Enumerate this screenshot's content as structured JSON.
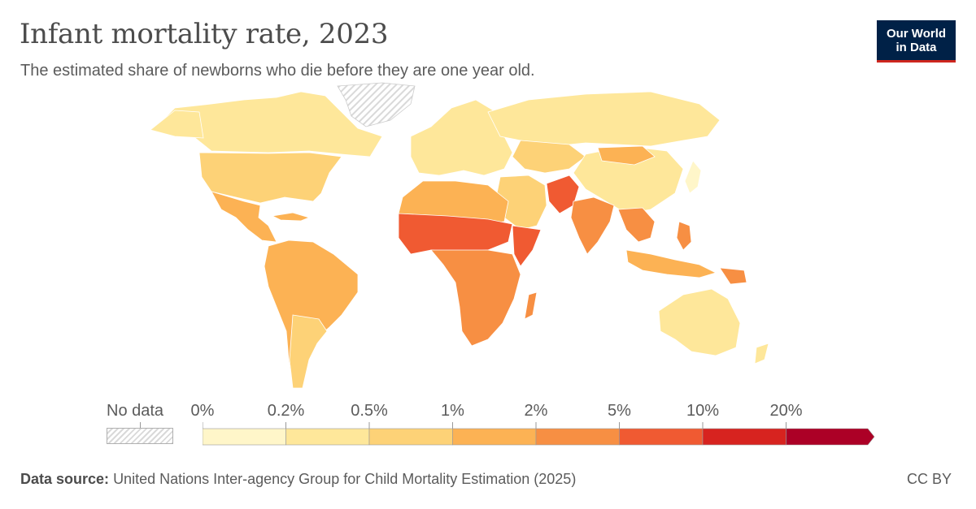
{
  "header": {
    "title": "Infant mortality rate, 2023",
    "subtitle": "The estimated share of newborns who die before they are one year old.",
    "logo_line1": "Our World",
    "logo_line2": "in Data"
  },
  "legend": {
    "no_data_label": "No data",
    "bins": [
      {
        "label": "0%",
        "color": "#fff6c9"
      },
      {
        "label": "0.2%",
        "color": "#fee79a"
      },
      {
        "label": "0.5%",
        "color": "#fdd277"
      },
      {
        "label": "1%",
        "color": "#fcb254"
      },
      {
        "label": "2%",
        "color": "#f78f43"
      },
      {
        "label": "5%",
        "color": "#f05a32"
      },
      {
        "label": "10%",
        "color": "#d7231f"
      },
      {
        "label": "20%",
        "color": "#ac0026"
      }
    ]
  },
  "colors": {
    "no_data_fill": "#e9e9e9",
    "border": "#ffffff",
    "title": "#4c4c4c"
  },
  "footer": {
    "source_label": "Data source:",
    "source_text": "United Nations Inter-agency Group for Child Mortality Estimation (2025)",
    "license": "CC BY"
  }
}
